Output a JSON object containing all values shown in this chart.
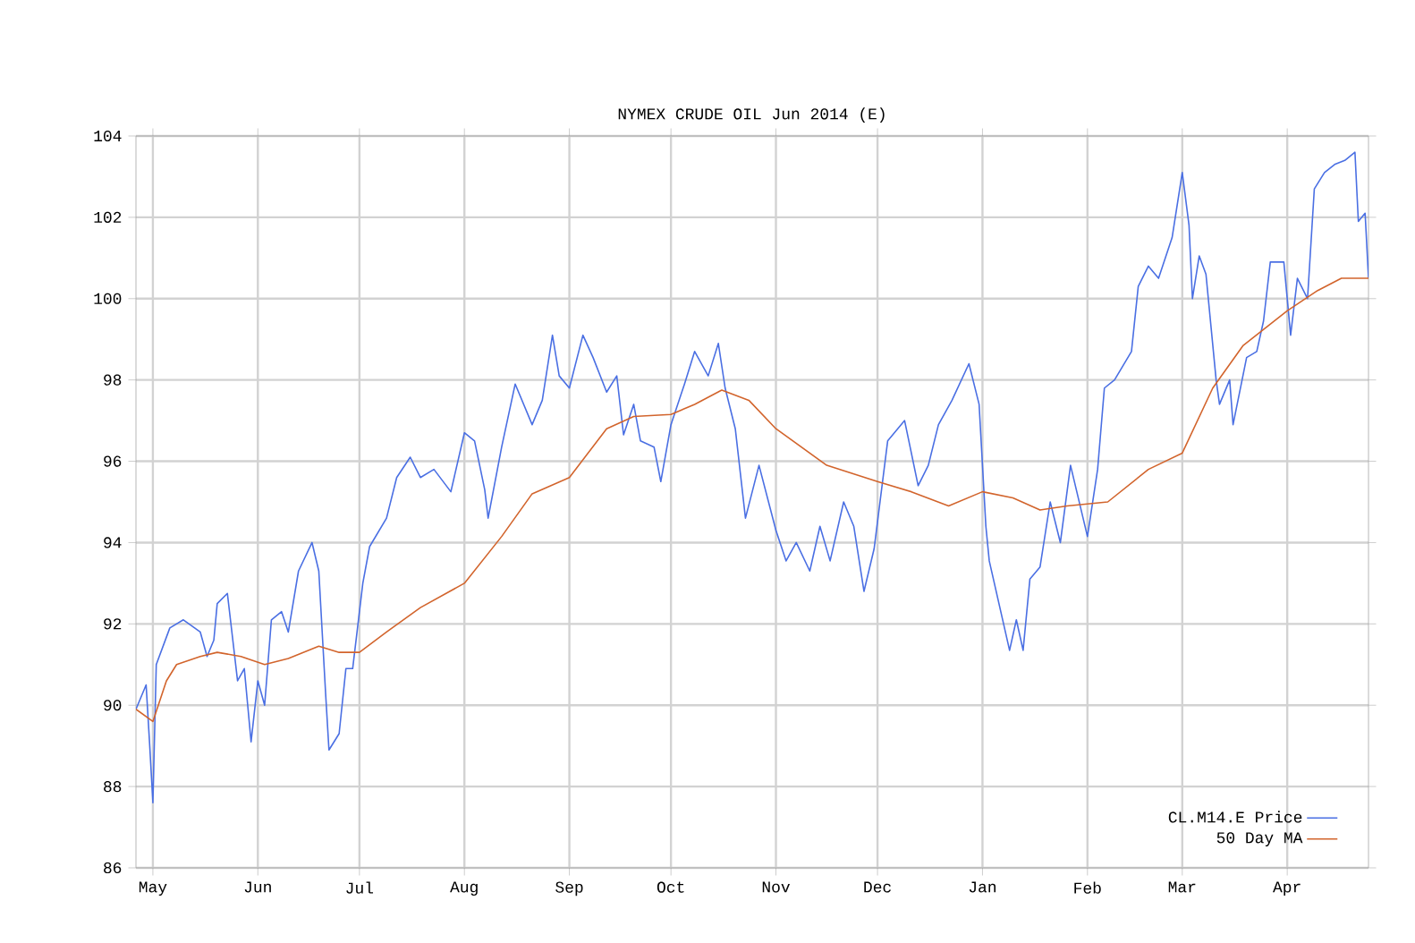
{
  "chart_data": {
    "type": "line",
    "title": "NYMEX CRUDE OIL Jun 2014 (E)",
    "xlim": [
      "2013-04-26",
      "2014-04-25"
    ],
    "xticks": [
      {
        "value": "2013-05-01",
        "label": "May"
      },
      {
        "value": "2013-06-01",
        "label": "Jun"
      },
      {
        "value": "2013-07-01",
        "label": "Jul"
      },
      {
        "value": "2013-08-01",
        "label": "Aug"
      },
      {
        "value": "2013-09-01",
        "label": "Sep"
      },
      {
        "value": "2013-10-01",
        "label": "Oct"
      },
      {
        "value": "2013-11-01",
        "label": "Nov"
      },
      {
        "value": "2013-12-01",
        "label": "Dec"
      },
      {
        "value": "2014-01-01",
        "label": "Jan"
      },
      {
        "value": "2014-02-01",
        "label": "Feb"
      },
      {
        "value": "2014-03-01",
        "label": "Mar"
      },
      {
        "value": "2014-04-01",
        "label": "Apr"
      }
    ],
    "ylim": [
      86,
      104
    ],
    "yticks": [
      86,
      88,
      90,
      92,
      94,
      96,
      98,
      100,
      102,
      104
    ],
    "grid": true,
    "legend": "bottom right",
    "series": [
      {
        "name": "CL.M14.E Price",
        "color": "#4a6fe3",
        "x": [
          "2013-04-26",
          "2013-04-29",
          "2013-04-30",
          "2013-05-01",
          "2013-05-02",
          "2013-05-06",
          "2013-05-10",
          "2013-05-15",
          "2013-05-17",
          "2013-05-19",
          "2013-05-20",
          "2013-05-23",
          "2013-05-26",
          "2013-05-28",
          "2013-05-29",
          "2013-05-30",
          "2013-06-01",
          "2013-06-03",
          "2013-06-05",
          "2013-06-08",
          "2013-06-10",
          "2013-06-13",
          "2013-06-17",
          "2013-06-19",
          "2013-06-21",
          "2013-06-22",
          "2013-06-25",
          "2013-06-27",
          "2013-06-29",
          "2013-07-02",
          "2013-07-04",
          "2013-07-09",
          "2013-07-12",
          "2013-07-16",
          "2013-07-19",
          "2013-07-23",
          "2013-07-28",
          "2013-08-01",
          "2013-08-04",
          "2013-08-07",
          "2013-08-08",
          "2013-08-12",
          "2013-08-16",
          "2013-08-21",
          "2013-08-24",
          "2013-08-27",
          "2013-08-29",
          "2013-09-01",
          "2013-09-05",
          "2013-09-08",
          "2013-09-12",
          "2013-09-15",
          "2013-09-17",
          "2013-09-20",
          "2013-09-22",
          "2013-09-26",
          "2013-09-28",
          "2013-10-01",
          "2013-10-05",
          "2013-10-08",
          "2013-10-12",
          "2013-10-15",
          "2013-10-17",
          "2013-10-20",
          "2013-10-23",
          "2013-10-27",
          "2013-11-01",
          "2013-11-04",
          "2013-11-07",
          "2013-11-11",
          "2013-11-14",
          "2013-11-17",
          "2013-11-21",
          "2013-11-24",
          "2013-11-27",
          "2013-11-30",
          "2013-12-04",
          "2013-12-09",
          "2013-12-13",
          "2013-12-16",
          "2013-12-19",
          "2013-12-23",
          "2013-12-28",
          "2013-12-31",
          "2014-01-02",
          "2014-01-03",
          "2014-01-09",
          "2014-01-11",
          "2014-01-13",
          "2014-01-15",
          "2014-01-18",
          "2014-01-21",
          "2014-01-24",
          "2014-01-27",
          "2014-02-01",
          "2014-02-04",
          "2014-02-06",
          "2014-02-09",
          "2014-02-14",
          "2014-02-16",
          "2014-02-19",
          "2014-02-22",
          "2014-02-26",
          "2014-03-01",
          "2014-03-03",
          "2014-03-04",
          "2014-03-06",
          "2014-03-08",
          "2014-03-11",
          "2014-03-12",
          "2014-03-15",
          "2014-03-16",
          "2014-03-20",
          "2014-03-23",
          "2014-03-25",
          "2014-03-27",
          "2014-03-31",
          "2014-04-02",
          "2014-04-04",
          "2014-04-07",
          "2014-04-09",
          "2014-04-12",
          "2014-04-15",
          "2014-04-18",
          "2014-04-21",
          "2014-04-22",
          "2014-04-24",
          "2014-04-25"
        ],
        "values": [
          89.9,
          90.5,
          89.1,
          87.6,
          91.0,
          91.9,
          92.1,
          91.8,
          91.2,
          91.6,
          92.5,
          92.75,
          90.6,
          90.9,
          90.0,
          89.1,
          90.6,
          90.0,
          92.1,
          92.3,
          91.8,
          93.3,
          94.0,
          93.3,
          90.3,
          88.9,
          89.3,
          90.9,
          90.9,
          93.0,
          93.9,
          94.6,
          95.6,
          96.1,
          95.6,
          95.8,
          95.25,
          96.7,
          96.5,
          95.3,
          94.6,
          96.35,
          97.9,
          96.9,
          97.5,
          99.1,
          98.1,
          97.8,
          99.1,
          98.55,
          97.7,
          98.1,
          96.65,
          97.4,
          96.5,
          96.35,
          95.5,
          96.9,
          97.9,
          98.7,
          98.1,
          98.9,
          97.8,
          96.8,
          94.6,
          95.9,
          94.3,
          93.55,
          94.0,
          93.3,
          94.4,
          93.55,
          95.0,
          94.4,
          92.8,
          93.85,
          96.5,
          97.0,
          95.4,
          95.9,
          96.9,
          97.5,
          98.4,
          97.4,
          94.4,
          93.55,
          91.35,
          92.1,
          91.35,
          93.1,
          93.4,
          95.0,
          94.0,
          95.9,
          94.15,
          95.8,
          97.8,
          98.0,
          98.7,
          100.3,
          100.8,
          100.5,
          101.5,
          103.1,
          101.8,
          100.0,
          101.05,
          100.6,
          98.0,
          97.4,
          98.0,
          96.9,
          98.55,
          98.7,
          99.45,
          100.9,
          100.9,
          99.1,
          100.5,
          100.0,
          102.7,
          103.1,
          103.3,
          103.4,
          103.6,
          101.9,
          102.1,
          100.5
        ]
      },
      {
        "name": "50 Day MA",
        "color": "#d2642c",
        "x": [
          "2013-04-26",
          "2013-05-01",
          "2013-05-05",
          "2013-05-08",
          "2013-05-15",
          "2013-05-20",
          "2013-05-27",
          "2013-06-03",
          "2013-06-10",
          "2013-06-19",
          "2013-06-25",
          "2013-07-01",
          "2013-07-09",
          "2013-07-19",
          "2013-08-01",
          "2013-08-12",
          "2013-08-21",
          "2013-09-01",
          "2013-09-12",
          "2013-09-20",
          "2013-10-01",
          "2013-10-08",
          "2013-10-16",
          "2013-10-24",
          "2013-11-01",
          "2013-11-16",
          "2013-12-01",
          "2013-12-11",
          "2013-12-22",
          "2014-01-01",
          "2014-01-10",
          "2014-01-18",
          "2014-01-26",
          "2014-02-07",
          "2014-02-19",
          "2014-03-01",
          "2014-03-10",
          "2014-03-19",
          "2014-04-01",
          "2014-04-10",
          "2014-04-17",
          "2014-04-25"
        ],
        "values": [
          89.9,
          89.6,
          90.6,
          91.0,
          91.2,
          91.3,
          91.2,
          91.0,
          91.15,
          91.45,
          91.3,
          91.3,
          91.8,
          92.4,
          93.0,
          94.15,
          95.2,
          95.6,
          96.8,
          97.1,
          97.15,
          97.4,
          97.75,
          97.5,
          96.8,
          95.9,
          95.5,
          95.25,
          94.9,
          95.25,
          95.1,
          94.8,
          94.9,
          95.0,
          95.8,
          96.2,
          97.8,
          98.85,
          99.7,
          100.2,
          100.5,
          100.5
        ]
      }
    ]
  }
}
